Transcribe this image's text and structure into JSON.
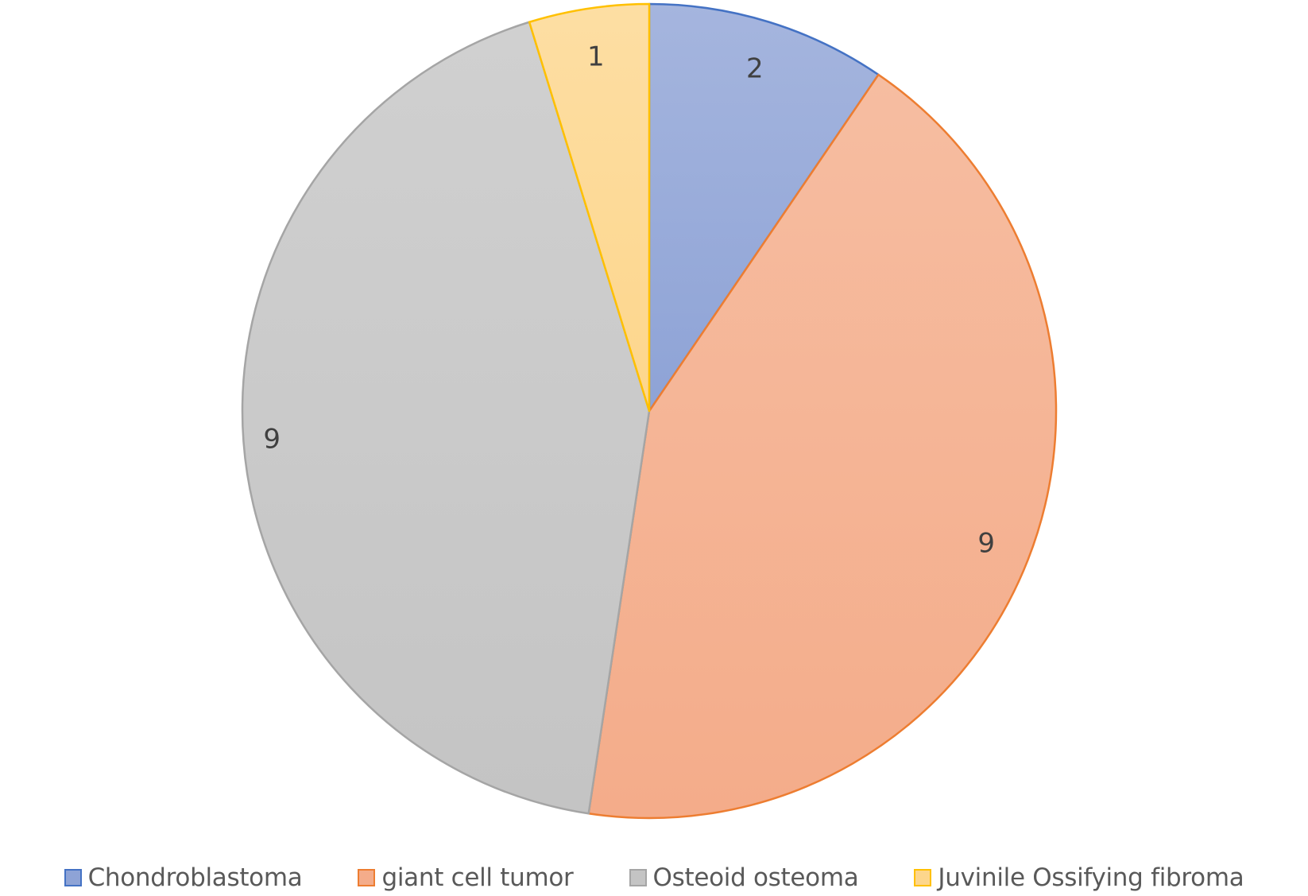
{
  "chart_data": {
    "type": "pie",
    "title": "",
    "categories": [
      "Chondroblastoma",
      "giant cell tumor",
      "Osteoid osteoma",
      "Juvinile Ossifying fibroma"
    ],
    "values": [
      2,
      9,
      9,
      1
    ],
    "value_labels": [
      "2",
      "9",
      "9",
      "1"
    ],
    "colors": [
      "#8ea3d6",
      "#f4ac8a",
      "#c4c4c4",
      "#fdd68c"
    ],
    "edge_colors": [
      "#4472c4",
      "#ed7d31",
      "#a5a5a5",
      "#ffc000"
    ],
    "start_angle_deg": 0,
    "direction": "clockwise",
    "legend_position": "bottom"
  }
}
